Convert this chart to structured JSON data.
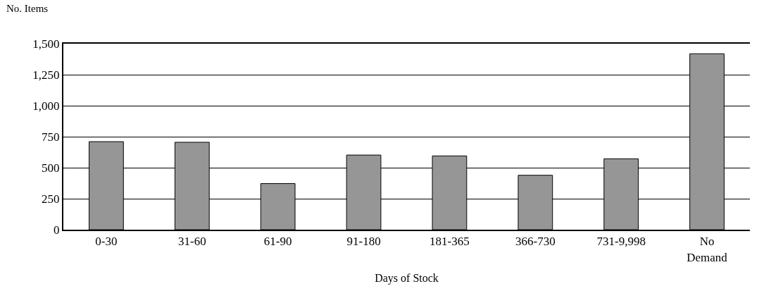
{
  "chart_data": {
    "type": "bar",
    "xlabel": "Days of Stock",
    "ylabel": "No. Items",
    "categories": [
      "0-30",
      "31-60",
      "61-90",
      "91-180",
      "181-365",
      "366-730",
      "731-9,998",
      "No Demand"
    ],
    "values": [
      710,
      705,
      372,
      602,
      595,
      439,
      572,
      1419
    ],
    "color": "#969696",
    "ylim": [
      0,
      1500
    ],
    "yticks": [
      0,
      {
        "value": 250,
        "label": "250"
      },
      {
        "value": 500,
        "label": "500"
      },
      {
        "value": 750,
        "label": "750"
      },
      {
        "value": 1000,
        "label": "1,000"
      },
      {
        "value": 1250,
        "label": "1,250"
      },
      {
        "value": 1500,
        "label": "1,500"
      }
    ],
    "grid": "y",
    "legend": false
  }
}
